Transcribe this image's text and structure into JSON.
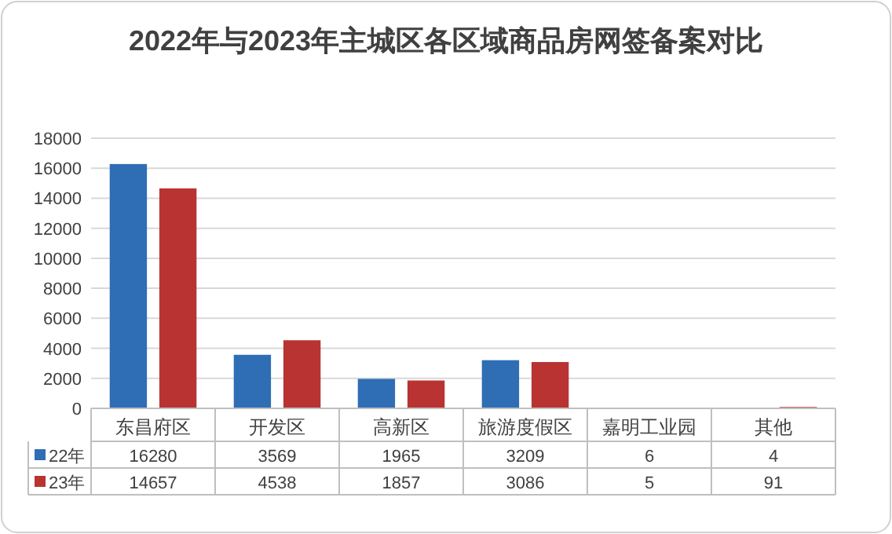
{
  "chart_data": {
    "type": "bar",
    "title": "2022年与2023年主城区各区域商品房网签备案对比",
    "categories": [
      "东昌府区",
      "开发区",
      "高新区",
      "旅游度假区",
      "嘉明工业园",
      "其他"
    ],
    "series": [
      {
        "name": "22年",
        "color": "#2f6db5",
        "values": [
          16280,
          3569,
          1965,
          3209,
          6,
          4
        ]
      },
      {
        "name": "23年",
        "color": "#b93333",
        "values": [
          14657,
          4538,
          1857,
          3086,
          5,
          91
        ]
      }
    ],
    "ylim": [
      0,
      18000
    ],
    "yticks": [
      0,
      2000,
      4000,
      6000,
      8000,
      10000,
      12000,
      14000,
      16000,
      18000
    ],
    "grid": "y",
    "data_labels": true,
    "legend": "bottom"
  }
}
